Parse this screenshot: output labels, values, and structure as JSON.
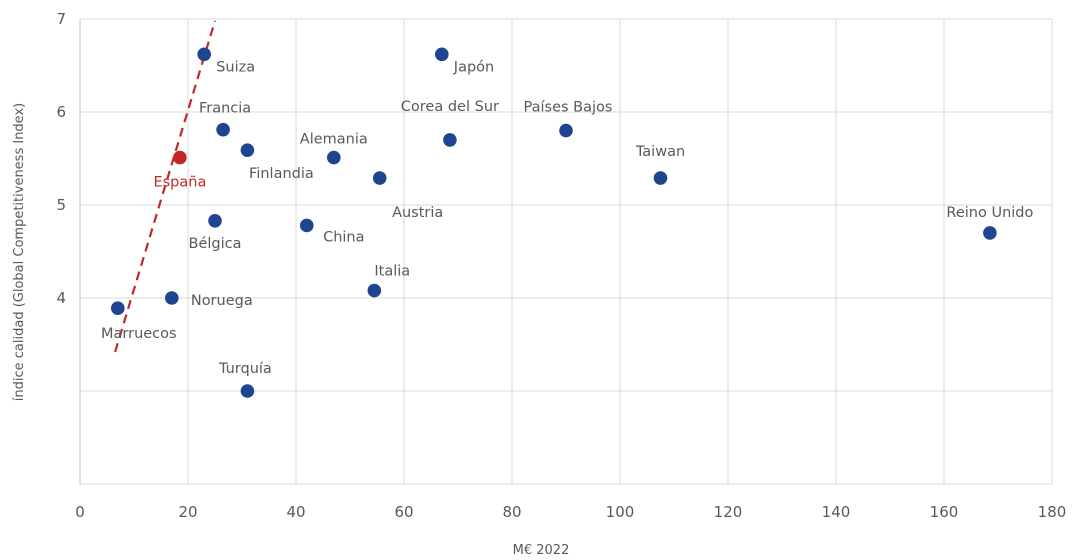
{
  "chart_data": {
    "type": "scatter",
    "xlabel": "M€ 2022",
    "ylabel": "índice calidad (Global Competitiveness Index)",
    "xlim": [
      0,
      180
    ],
    "ylim": [
      2,
      7
    ],
    "x_ticks": [
      0,
      20,
      40,
      60,
      80,
      100,
      120,
      140,
      160,
      180
    ],
    "y_ticks": [
      2,
      3,
      4,
      5,
      6,
      7
    ],
    "y_tick_labels": [
      "",
      "",
      "4",
      "5",
      "6",
      "7"
    ],
    "grid": true,
    "colors": {
      "point": "#1f4591",
      "highlight": "#c0282d",
      "trend": "#c0282d"
    },
    "points": [
      {
        "label": "Suiza",
        "x": 23,
        "y": 6.62
      },
      {
        "label": "Japón",
        "x": 67,
        "y": 6.62
      },
      {
        "label": "Francia",
        "x": 26.5,
        "y": 5.81
      },
      {
        "label": "Países Bajos",
        "x": 90,
        "y": 5.8
      },
      {
        "label": "Corea del Sur",
        "x": 68.5,
        "y": 5.7
      },
      {
        "label": "Finlandia",
        "x": 31,
        "y": 5.59
      },
      {
        "label": "Alemania",
        "x": 47,
        "y": 5.51
      },
      {
        "label": "España",
        "x": 18.5,
        "y": 5.51,
        "highlight": true
      },
      {
        "label": "Austria",
        "x": 55.5,
        "y": 5.29
      },
      {
        "label": "Taiwan",
        "x": 107.5,
        "y": 5.29
      },
      {
        "label": "Bélgica",
        "x": 25,
        "y": 4.83
      },
      {
        "label": "China",
        "x": 42,
        "y": 4.78
      },
      {
        "label": "Reino Unido",
        "x": 168.5,
        "y": 4.7
      },
      {
        "label": "Italia",
        "x": 54.5,
        "y": 4.08
      },
      {
        "label": "Noruega",
        "x": 17,
        "y": 4.0
      },
      {
        "label": "Marruecos",
        "x": 7,
        "y": 3.89
      },
      {
        "label": "Turquía",
        "x": 31,
        "y": 3.0
      }
    ],
    "trendline": {
      "style": "dashed",
      "from": {
        "x": 6.5,
        "y": 3.42
      },
      "to": {
        "x": 25,
        "y": 6.98
      }
    }
  }
}
